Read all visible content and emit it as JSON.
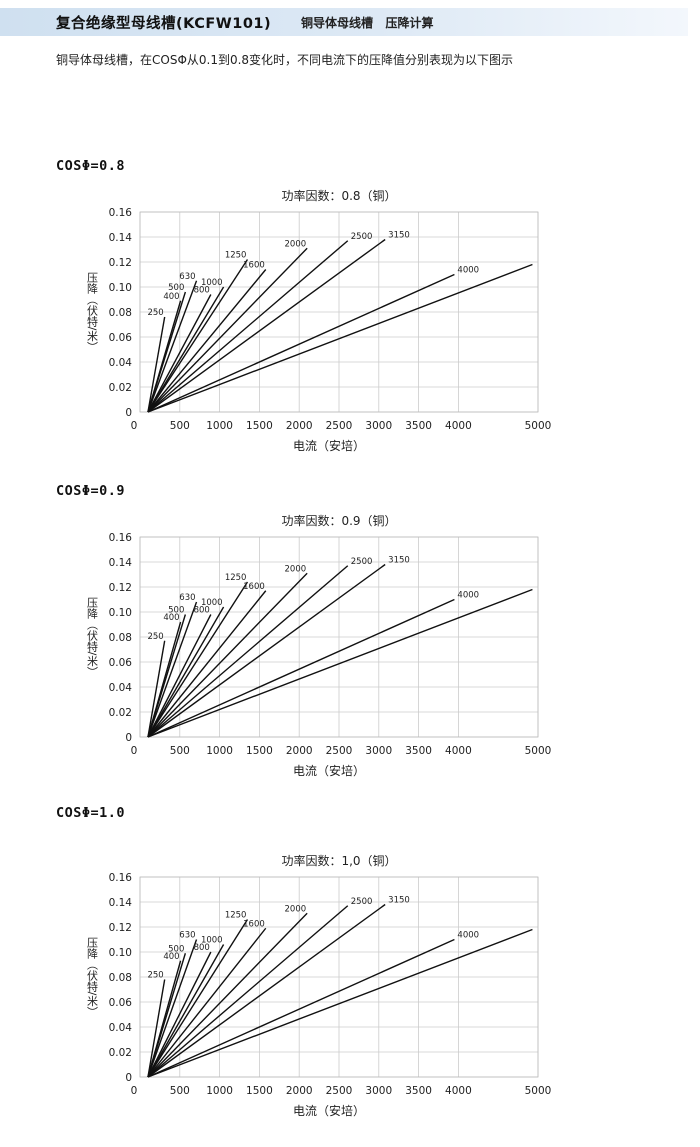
{
  "header": {
    "title": "复合绝缘型母线槽(KCFW101)",
    "subtitle": "铜导体母线槽   压降计算"
  },
  "intro_text": "铜导体母线槽，在COSΦ从0.1到0.8变化时，不同电流下的压降值分别表现为以下图示",
  "sections": [
    {
      "cos_label": "COSΦ=0.8"
    },
    {
      "cos_label": "COSΦ=0.9"
    },
    {
      "cos_label": "COSΦ=1.0"
    }
  ],
  "colors": {
    "line": "#111111",
    "grid": "#cccccc",
    "header_accent": "#cfe0f0"
  },
  "chart_data": [
    {
      "type": "line",
      "title": "功率因数：0.8（铜）",
      "xlabel": "电流（安培）",
      "ylabel": "压降（伏特/米）",
      "xlim": [
        0,
        5000
      ],
      "ylim": [
        0,
        0.16
      ],
      "xticks": [
        "0",
        "500",
        "1000",
        "1500",
        "2000",
        "2500",
        "3000",
        "3500",
        "4000",
        "5000"
      ],
      "xtick_values": [
        0,
        500,
        1000,
        1500,
        2000,
        2500,
        3000,
        3500,
        4000,
        5000
      ],
      "yticks": [
        "0",
        "0.02",
        "0.04",
        "0.06",
        "0.08",
        "0.10",
        "0.12",
        "0.14",
        "0.16"
      ],
      "ytick_values": [
        0,
        0.02,
        0.04,
        0.06,
        0.08,
        0.1,
        0.12,
        0.14,
        0.16
      ],
      "grid": true,
      "series": [
        {
          "name": "250",
          "x": [
            100,
            310
          ],
          "y": [
            0,
            0.076
          ]
        },
        {
          "name": "400",
          "x": [
            100,
            510
          ],
          "y": [
            0,
            0.089
          ]
        },
        {
          "name": "500",
          "x": [
            100,
            570
          ],
          "y": [
            0,
            0.096
          ]
        },
        {
          "name": "630",
          "x": [
            100,
            710
          ],
          "y": [
            0,
            0.105
          ]
        },
        {
          "name": "800",
          "x": [
            100,
            890
          ],
          "y": [
            0,
            0.094
          ]
        },
        {
          "name": "1000",
          "x": [
            100,
            1050
          ],
          "y": [
            0,
            0.1
          ]
        },
        {
          "name": "1250",
          "x": [
            100,
            1350
          ],
          "y": [
            0,
            0.122
          ]
        },
        {
          "name": "1600",
          "x": [
            100,
            1580
          ],
          "y": [
            0,
            0.114
          ]
        },
        {
          "name": "2000",
          "x": [
            100,
            2100
          ],
          "y": [
            0,
            0.131
          ]
        },
        {
          "name": "2500",
          "x": [
            100,
            2610
          ],
          "y": [
            0,
            0.137
          ]
        },
        {
          "name": "3150",
          "x": [
            100,
            3080
          ],
          "y": [
            0,
            0.138
          ]
        },
        {
          "name": "4000",
          "x": [
            100,
            3950
          ],
          "y": [
            0,
            0.11
          ]
        },
        {
          "name": "",
          "x": [
            100,
            4930
          ],
          "y": [
            0,
            0.118
          ]
        }
      ]
    },
    {
      "type": "line",
      "title": "功率因数：0.9（铜）",
      "xlabel": "电流（安培）",
      "ylabel": "压降（伏特/米）",
      "xlim": [
        0,
        5000
      ],
      "ylim": [
        0,
        0.16
      ],
      "xticks": [
        "0",
        "500",
        "1000",
        "1500",
        "2000",
        "2500",
        "3000",
        "3500",
        "4000",
        "5000"
      ],
      "xtick_values": [
        0,
        500,
        1000,
        1500,
        2000,
        2500,
        3000,
        3500,
        4000,
        5000
      ],
      "yticks": [
        "0",
        "0.02",
        "0.04",
        "0.06",
        "0.08",
        "0.10",
        "0.12",
        "0.14",
        "0.16"
      ],
      "ytick_values": [
        0,
        0.02,
        0.04,
        0.06,
        0.08,
        0.1,
        0.12,
        0.14,
        0.16
      ],
      "grid": true,
      "series": [
        {
          "name": "250",
          "x": [
            100,
            310
          ],
          "y": [
            0,
            0.077
          ]
        },
        {
          "name": "400",
          "x": [
            100,
            510
          ],
          "y": [
            0,
            0.092
          ]
        },
        {
          "name": "500",
          "x": [
            100,
            570
          ],
          "y": [
            0,
            0.098
          ]
        },
        {
          "name": "630",
          "x": [
            100,
            710
          ],
          "y": [
            0,
            0.108
          ]
        },
        {
          "name": "800",
          "x": [
            100,
            890
          ],
          "y": [
            0,
            0.098
          ]
        },
        {
          "name": "1000",
          "x": [
            100,
            1050
          ],
          "y": [
            0,
            0.104
          ]
        },
        {
          "name": "1250",
          "x": [
            100,
            1350
          ],
          "y": [
            0,
            0.124
          ]
        },
        {
          "name": "1600",
          "x": [
            100,
            1580
          ],
          "y": [
            0,
            0.117
          ]
        },
        {
          "name": "2000",
          "x": [
            100,
            2100
          ],
          "y": [
            0,
            0.131
          ]
        },
        {
          "name": "2500",
          "x": [
            100,
            2610
          ],
          "y": [
            0,
            0.137
          ]
        },
        {
          "name": "3150",
          "x": [
            100,
            3080
          ],
          "y": [
            0,
            0.138
          ]
        },
        {
          "name": "4000",
          "x": [
            100,
            3950
          ],
          "y": [
            0,
            0.11
          ]
        },
        {
          "name": "",
          "x": [
            100,
            4930
          ],
          "y": [
            0,
            0.118
          ]
        }
      ]
    },
    {
      "type": "line",
      "title": "功率因数：1,0（铜）",
      "xlabel": "电流（安培）",
      "ylabel": "压降（伏特/米）",
      "xlim": [
        0,
        5000
      ],
      "ylim": [
        0,
        0.16
      ],
      "xticks": [
        "0",
        "500",
        "1000",
        "1500",
        "2000",
        "2500",
        "3000",
        "3500",
        "4000",
        "5000"
      ],
      "xtick_values": [
        0,
        500,
        1000,
        1500,
        2000,
        2500,
        3000,
        3500,
        4000,
        5000
      ],
      "yticks": [
        "0",
        "0.02",
        "0.04",
        "0.06",
        "0.08",
        "0.10",
        "0.12",
        "0.14",
        "0.16"
      ],
      "ytick_values": [
        0,
        0.02,
        0.04,
        0.06,
        0.08,
        0.1,
        0.12,
        0.14,
        0.16
      ],
      "grid": true,
      "series": [
        {
          "name": "250",
          "x": [
            100,
            310
          ],
          "y": [
            0,
            0.078
          ]
        },
        {
          "name": "400",
          "x": [
            100,
            510
          ],
          "y": [
            0,
            0.093
          ]
        },
        {
          "name": "500",
          "x": [
            100,
            570
          ],
          "y": [
            0,
            0.099
          ]
        },
        {
          "name": "630",
          "x": [
            100,
            710
          ],
          "y": [
            0,
            0.11
          ]
        },
        {
          "name": "800",
          "x": [
            100,
            890
          ],
          "y": [
            0,
            0.1
          ]
        },
        {
          "name": "1000",
          "x": [
            100,
            1050
          ],
          "y": [
            0,
            0.106
          ]
        },
        {
          "name": "1250",
          "x": [
            100,
            1350
          ],
          "y": [
            0,
            0.126
          ]
        },
        {
          "name": "1600",
          "x": [
            100,
            1580
          ],
          "y": [
            0,
            0.119
          ]
        },
        {
          "name": "2000",
          "x": [
            100,
            2100
          ],
          "y": [
            0,
            0.131
          ]
        },
        {
          "name": "2500",
          "x": [
            100,
            2610
          ],
          "y": [
            0,
            0.137
          ]
        },
        {
          "name": "3150",
          "x": [
            100,
            3080
          ],
          "y": [
            0,
            0.138
          ]
        },
        {
          "name": "4000",
          "x": [
            100,
            3950
          ],
          "y": [
            0,
            0.11
          ]
        },
        {
          "name": "",
          "x": [
            100,
            4930
          ],
          "y": [
            0,
            0.118
          ]
        }
      ]
    }
  ]
}
